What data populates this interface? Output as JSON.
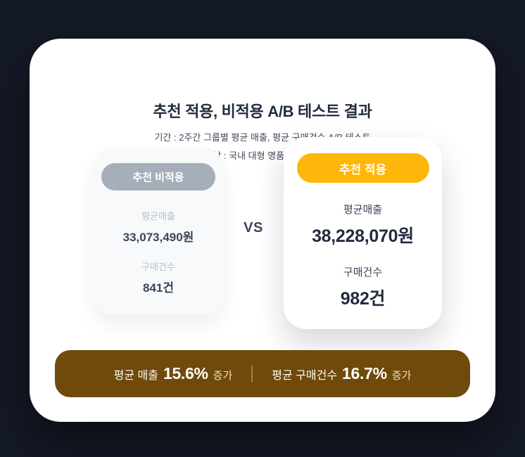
{
  "header": {
    "title": "추천 적용, 비적용 A/B 테스트 결과",
    "subtitle_period": "기간 : 2주간 그룹별 평균 매출, 평균 구매건수 A/B 테스트",
    "subtitle_target": "대상 : 국내 대형 명품 온라인몰"
  },
  "comparison": {
    "vs_label": "VS",
    "control": {
      "badge": "추천 비적용",
      "badge_color": "#a5aeb9",
      "metrics": [
        {
          "label": "평균매출",
          "value": "33,073,490원"
        },
        {
          "label": "구매건수",
          "value": "841건"
        }
      ]
    },
    "variant": {
      "badge": "추천 적용",
      "badge_color": "#ffb60a",
      "metrics": [
        {
          "label": "평균매출",
          "value": "38,228,070원"
        },
        {
          "label": "구매건수",
          "value": "982건"
        }
      ]
    }
  },
  "summary": {
    "bar_color": "#6f4a0a",
    "items": [
      {
        "label": "평균 매출",
        "percent": "15.6%",
        "suffix": "증가"
      },
      {
        "label": "평균 구매건수",
        "percent": "16.7%",
        "suffix": "증가"
      }
    ]
  },
  "colors": {
    "page_background": "#141926",
    "card_background": "#ffffff",
    "accent_yellow": "#ffb60a",
    "badge_gray": "#a5aeb9",
    "summary_brown": "#6f4a0a",
    "title_text": "#222c3e"
  },
  "chart_data": {
    "type": "table",
    "title": "추천 적용, 비적용 A/B 테스트 결과",
    "subtitle": "기간 : 2주간 그룹별 평균 매출, 평균 구매건수 A/B 테스트 / 대상 : 국내 대형 명품 온라인몰",
    "categories": [
      "평균매출 (원)",
      "구매건수 (건)"
    ],
    "series": [
      {
        "name": "추천 비적용",
        "values": [
          33073490,
          841
        ]
      },
      {
        "name": "추천 적용",
        "values": [
          38228070,
          982
        ]
      }
    ],
    "annotations": [
      {
        "label": "평균 매출",
        "change_pct": 15.6,
        "direction": "증가"
      },
      {
        "label": "평균 구매건수",
        "change_pct": 16.7,
        "direction": "증가"
      }
    ]
  }
}
